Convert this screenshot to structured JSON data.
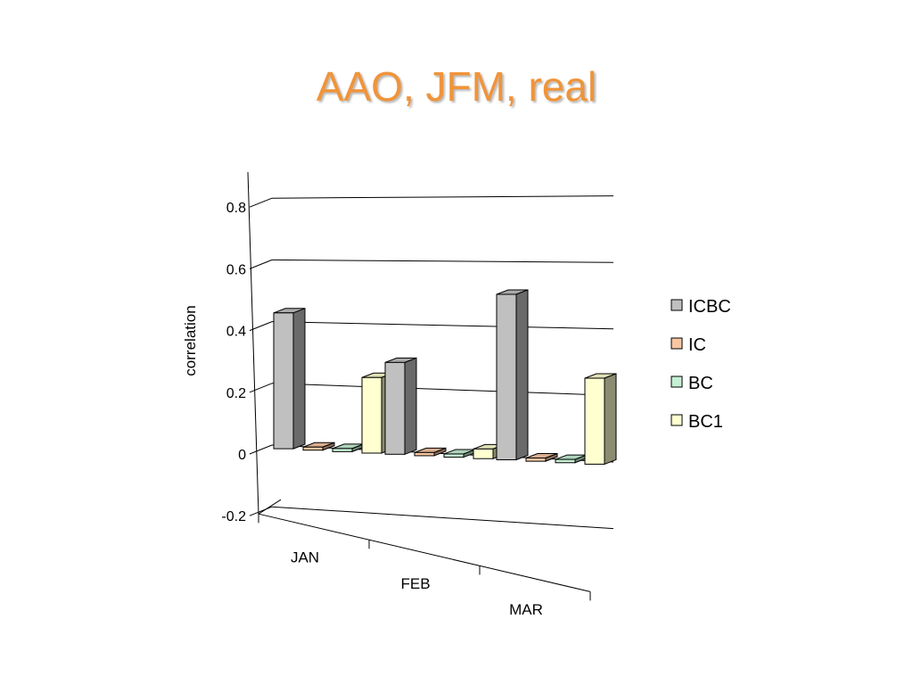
{
  "slide": {
    "title": "AAO, JFM, real"
  },
  "chart_data": {
    "type": "bar",
    "title": "",
    "xlabel": "",
    "ylabel": "correlation",
    "categories": [
      "JAN",
      "FEB",
      "MAR"
    ],
    "ylim": [
      -0.2,
      0.8
    ],
    "yticks": [
      "0.8",
      "0.6",
      "0.4",
      "0.2",
      "0",
      "-0.2"
    ],
    "grid": true,
    "legend": "right",
    "series": [
      {
        "name": "ICBC",
        "values": [
          0.44,
          0.29,
          0.51
        ],
        "color": "#c0c0c0"
      },
      {
        "name": "IC",
        "values": [
          0.01,
          0.01,
          0.01
        ],
        "color": "#f7c6a3"
      },
      {
        "name": "BC",
        "values": [
          0.01,
          0.01,
          0.01
        ],
        "color": "#c6f0d4"
      },
      {
        "name": "BC1",
        "values": [
          0.24,
          0.03,
          0.26
        ],
        "color": "#ffffd0"
      }
    ]
  }
}
